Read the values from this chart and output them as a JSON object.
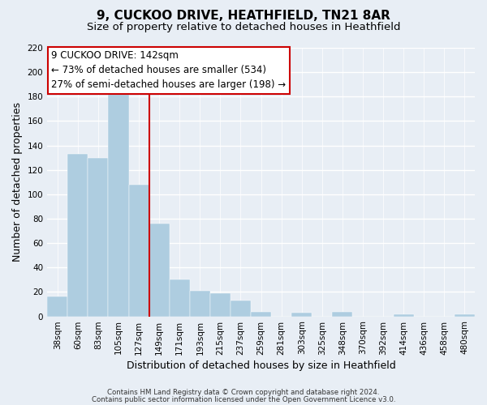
{
  "title": "9, CUCKOO DRIVE, HEATHFIELD, TN21 8AR",
  "subtitle": "Size of property relative to detached houses in Heathfield",
  "xlabel": "Distribution of detached houses by size in Heathfield",
  "ylabel": "Number of detached properties",
  "footer_line1": "Contains HM Land Registry data © Crown copyright and database right 2024.",
  "footer_line2": "Contains public sector information licensed under the Open Government Licence v3.0.",
  "bar_labels": [
    "38sqm",
    "60sqm",
    "83sqm",
    "105sqm",
    "127sqm",
    "149sqm",
    "171sqm",
    "193sqm",
    "215sqm",
    "237sqm",
    "259sqm",
    "281sqm",
    "303sqm",
    "325sqm",
    "348sqm",
    "370sqm",
    "392sqm",
    "414sqm",
    "436sqm",
    "458sqm",
    "480sqm"
  ],
  "bar_values": [
    16,
    133,
    130,
    183,
    108,
    76,
    30,
    21,
    19,
    13,
    4,
    0,
    3,
    0,
    4,
    0,
    0,
    2,
    0,
    0,
    2
  ],
  "bar_color": "#aecde0",
  "bar_edgecolor": "#aecde0",
  "vline_x": 4.5,
  "vline_color": "#cc0000",
  "ylim": [
    0,
    220
  ],
  "yticks": [
    0,
    20,
    40,
    60,
    80,
    100,
    120,
    140,
    160,
    180,
    200,
    220
  ],
  "annotation_title": "9 CUCKOO DRIVE: 142sqm",
  "annotation_line1": "← 73% of detached houses are smaller (534)",
  "annotation_line2": "27% of semi-detached houses are larger (198) →",
  "title_fontsize": 11,
  "subtitle_fontsize": 9.5,
  "axis_label_fontsize": 9,
  "tick_fontsize": 7.5,
  "annotation_fontsize": 8.5,
  "footer_fontsize": 6.2,
  "bg_color": "#e8eef5"
}
